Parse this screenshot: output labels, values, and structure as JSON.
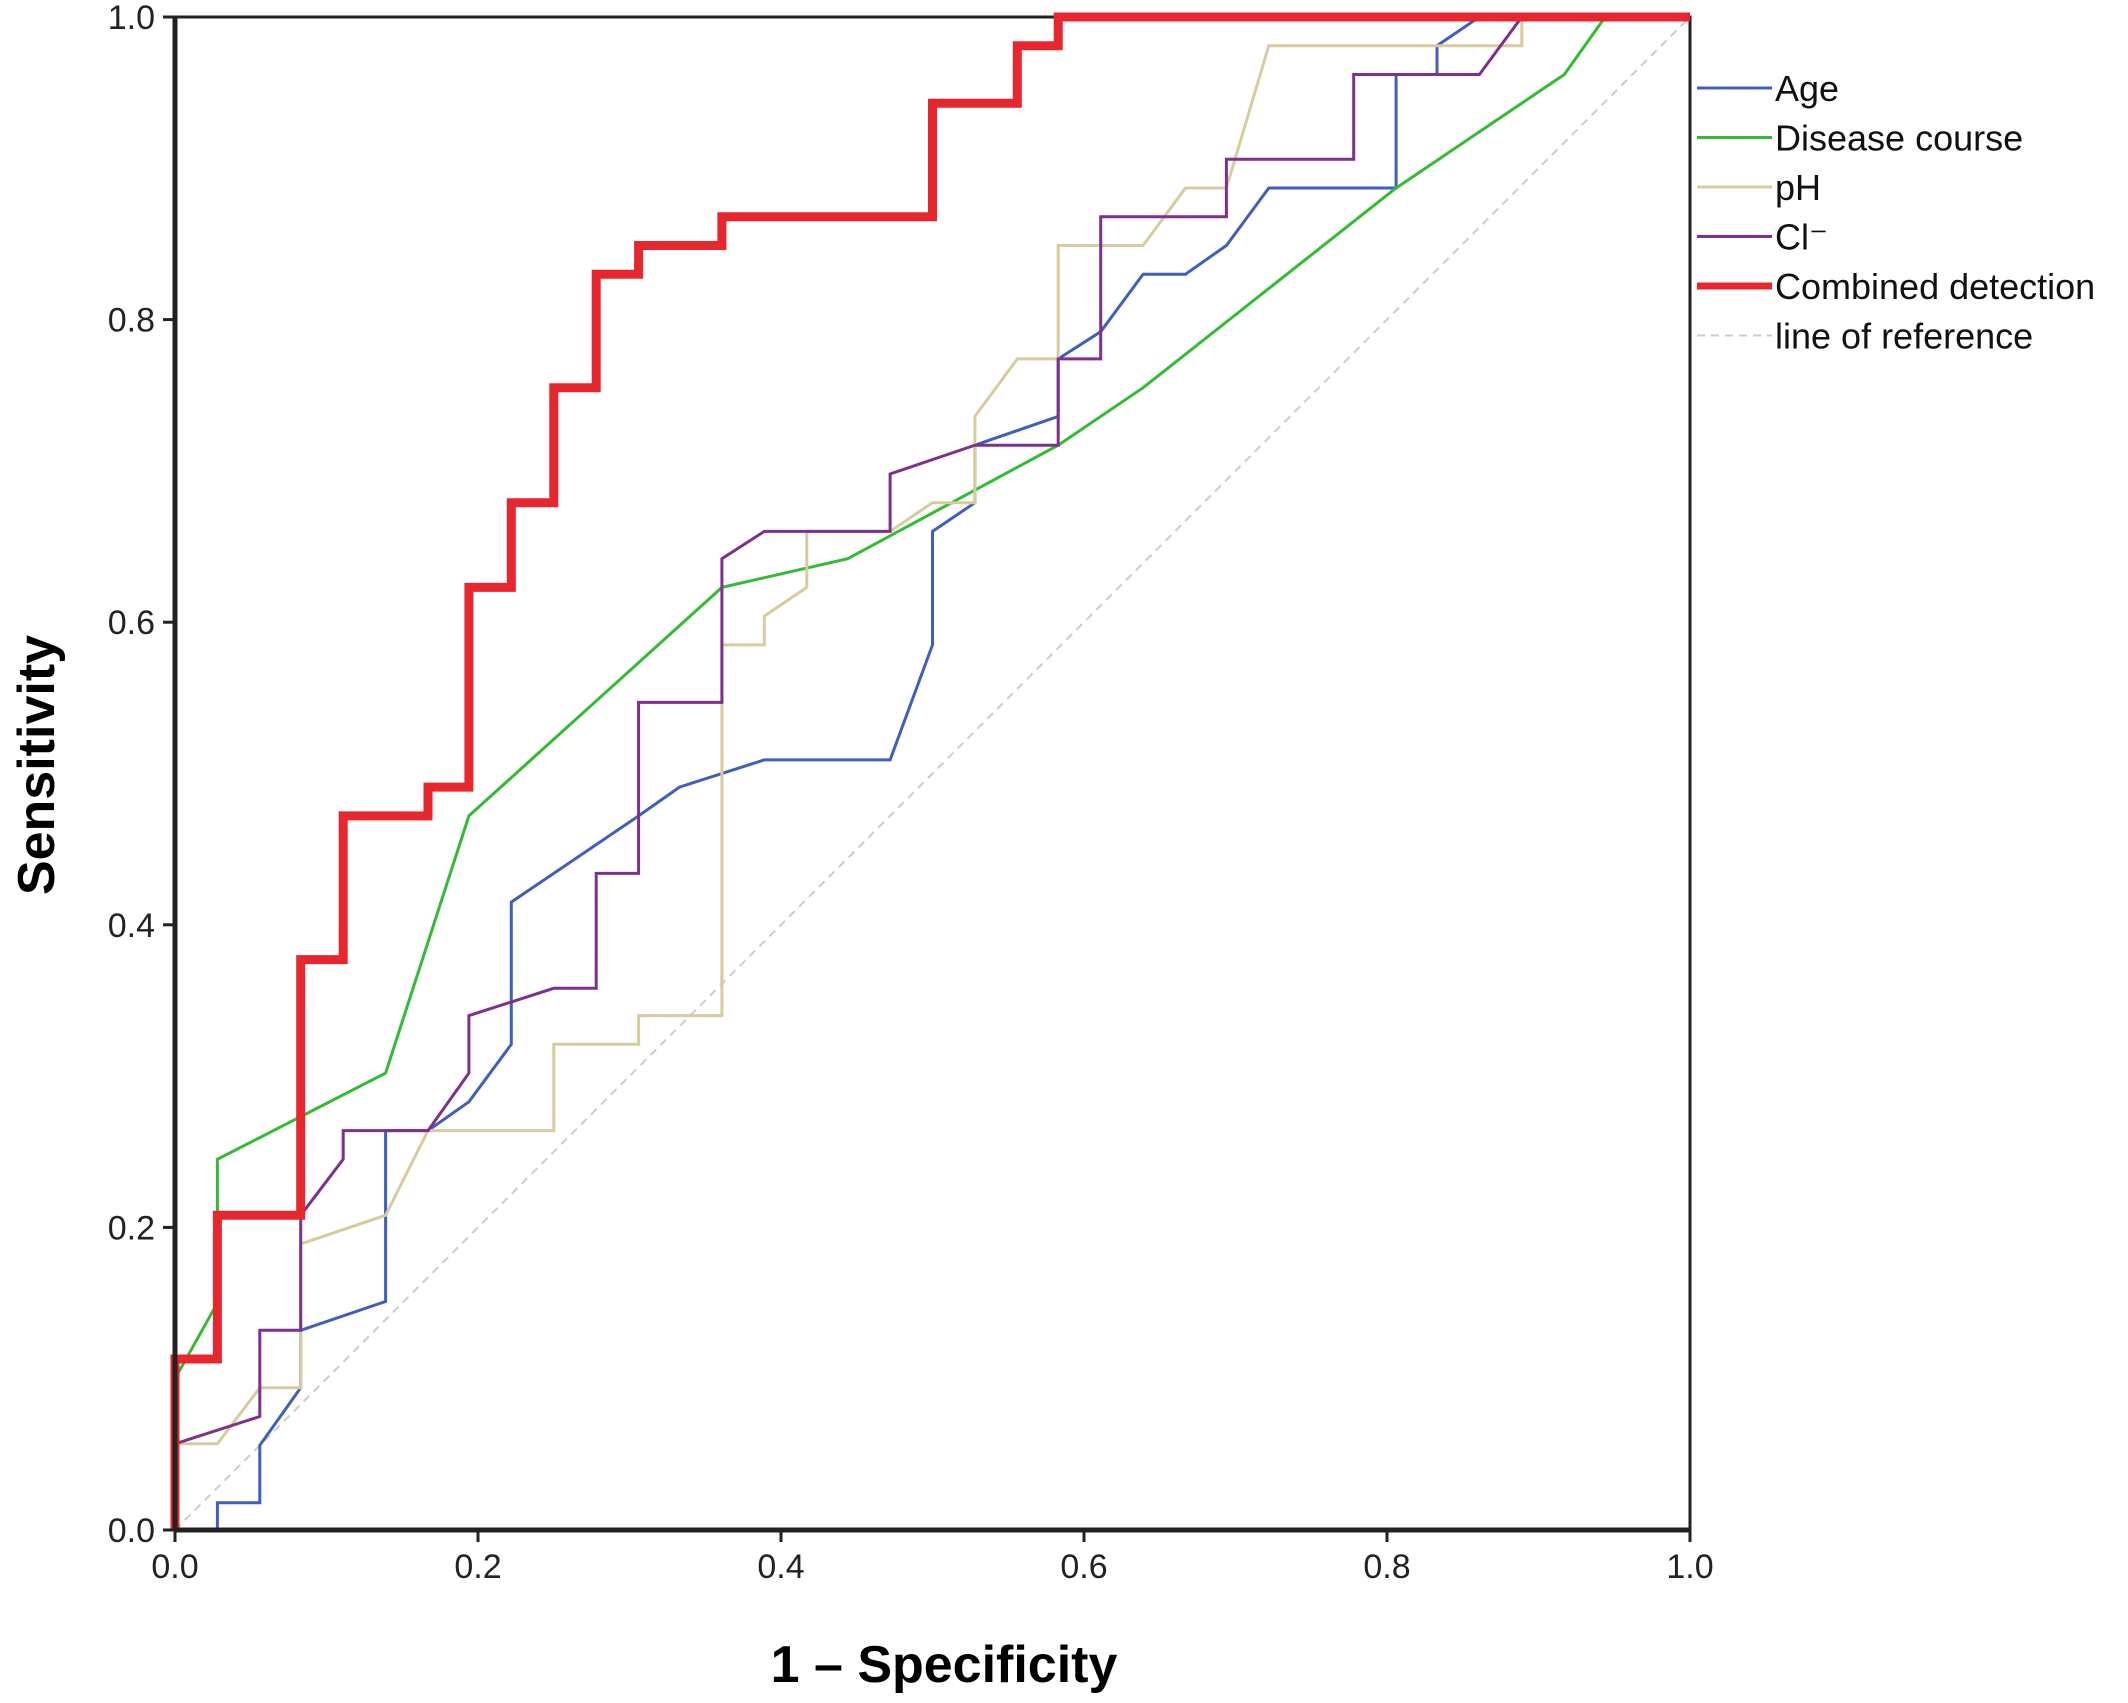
{
  "chart_data": {
    "type": "line",
    "xlabel": "1 – Specificity",
    "ylabel": "Sensitivity",
    "xlim": [
      0,
      1
    ],
    "ylim": [
      0,
      1
    ],
    "x_ticks": [
      "0.0",
      "0.2",
      "0.4",
      "0.6",
      "0.8",
      "1.0"
    ],
    "y_ticks": [
      "0.0",
      "0.2",
      "0.4",
      "0.6",
      "0.8",
      "1.0"
    ],
    "grid": false,
    "legend_position": "right",
    "series": [
      {
        "name": "Age",
        "color": "#3f5fbf",
        "points": [
          [
            0,
            0
          ],
          [
            0.028,
            0
          ],
          [
            0.028,
            0.018
          ],
          [
            0.056,
            0.018
          ],
          [
            0.056,
            0.056
          ],
          [
            0.083,
            0.094
          ],
          [
            0.083,
            0.132
          ],
          [
            0.139,
            0.151
          ],
          [
            0.139,
            0.264
          ],
          [
            0.167,
            0.264
          ],
          [
            0.194,
            0.283
          ],
          [
            0.222,
            0.321
          ],
          [
            0.222,
            0.415
          ],
          [
            0.278,
            0.453
          ],
          [
            0.306,
            0.472
          ],
          [
            0.333,
            0.491
          ],
          [
            0.389,
            0.509
          ],
          [
            0.472,
            0.509
          ],
          [
            0.5,
            0.585
          ],
          [
            0.5,
            0.66
          ],
          [
            0.528,
            0.679
          ],
          [
            0.528,
            0.717
          ],
          [
            0.583,
            0.736
          ],
          [
            0.583,
            0.774
          ],
          [
            0.611,
            0.792
          ],
          [
            0.639,
            0.83
          ],
          [
            0.667,
            0.83
          ],
          [
            0.694,
            0.849
          ],
          [
            0.722,
            0.887
          ],
          [
            0.806,
            0.887
          ],
          [
            0.806,
            0.962
          ],
          [
            0.833,
            0.962
          ],
          [
            0.833,
            0.981
          ],
          [
            0.861,
            1
          ],
          [
            1,
            1
          ]
        ]
      },
      {
        "name": "Disease course",
        "color": "#33bb33",
        "points": [
          [
            0,
            0.1
          ],
          [
            0.028,
            0.15
          ],
          [
            0.028,
            0.245
          ],
          [
            0.139,
            0.302
          ],
          [
            0.194,
            0.472
          ],
          [
            0.361,
            0.623
          ],
          [
            0.444,
            0.642
          ],
          [
            0.583,
            0.717
          ],
          [
            0.639,
            0.755
          ],
          [
            0.806,
            0.887
          ],
          [
            0.917,
            0.962
          ],
          [
            0.944,
            1
          ],
          [
            1,
            1
          ]
        ]
      },
      {
        "name": "pH",
        "color": "#d8cc9c",
        "points": [
          [
            0,
            0
          ],
          [
            0,
            0.057
          ],
          [
            0.028,
            0.057
          ],
          [
            0.056,
            0.094
          ],
          [
            0.083,
            0.094
          ],
          [
            0.083,
            0.189
          ],
          [
            0.139,
            0.208
          ],
          [
            0.167,
            0.264
          ],
          [
            0.25,
            0.264
          ],
          [
            0.25,
            0.321
          ],
          [
            0.306,
            0.321
          ],
          [
            0.306,
            0.34
          ],
          [
            0.361,
            0.34
          ],
          [
            0.361,
            0.585
          ],
          [
            0.389,
            0.585
          ],
          [
            0.389,
            0.604
          ],
          [
            0.417,
            0.623
          ],
          [
            0.417,
            0.66
          ],
          [
            0.472,
            0.66
          ],
          [
            0.5,
            0.679
          ],
          [
            0.528,
            0.679
          ],
          [
            0.528,
            0.736
          ],
          [
            0.556,
            0.774
          ],
          [
            0.583,
            0.774
          ],
          [
            0.583,
            0.849
          ],
          [
            0.639,
            0.849
          ],
          [
            0.667,
            0.887
          ],
          [
            0.694,
            0.887
          ],
          [
            0.722,
            0.981
          ],
          [
            0.889,
            0.981
          ],
          [
            0.889,
            1
          ],
          [
            1,
            1
          ]
        ]
      },
      {
        "name": "Cl⁻",
        "color": "#7f2f8f",
        "points": [
          [
            0,
            0
          ],
          [
            0,
            0.057
          ],
          [
            0.056,
            0.075
          ],
          [
            0.056,
            0.132
          ],
          [
            0.083,
            0.132
          ],
          [
            0.083,
            0.208
          ],
          [
            0.111,
            0.245
          ],
          [
            0.111,
            0.264
          ],
          [
            0.167,
            0.264
          ],
          [
            0.194,
            0.302
          ],
          [
            0.194,
            0.34
          ],
          [
            0.25,
            0.358
          ],
          [
            0.278,
            0.358
          ],
          [
            0.278,
            0.434
          ],
          [
            0.306,
            0.434
          ],
          [
            0.306,
            0.547
          ],
          [
            0.361,
            0.547
          ],
          [
            0.361,
            0.642
          ],
          [
            0.389,
            0.66
          ],
          [
            0.472,
            0.66
          ],
          [
            0.472,
            0.698
          ],
          [
            0.528,
            0.717
          ],
          [
            0.583,
            0.717
          ],
          [
            0.583,
            0.774
          ],
          [
            0.611,
            0.774
          ],
          [
            0.611,
            0.868
          ],
          [
            0.694,
            0.868
          ],
          [
            0.694,
            0.906
          ],
          [
            0.778,
            0.906
          ],
          [
            0.778,
            0.962
          ],
          [
            0.861,
            0.962
          ],
          [
            0.889,
            1
          ],
          [
            1,
            1
          ]
        ]
      },
      {
        "name": "Combined detection",
        "color": "#e8262e",
        "points": [
          [
            0,
            0
          ],
          [
            0,
            0.113
          ],
          [
            0.028,
            0.113
          ],
          [
            0.028,
            0.208
          ],
          [
            0.083,
            0.208
          ],
          [
            0.083,
            0.377
          ],
          [
            0.111,
            0.377
          ],
          [
            0.111,
            0.472
          ],
          [
            0.167,
            0.472
          ],
          [
            0.167,
            0.491
          ],
          [
            0.194,
            0.491
          ],
          [
            0.194,
            0.623
          ],
          [
            0.222,
            0.623
          ],
          [
            0.222,
            0.679
          ],
          [
            0.25,
            0.679
          ],
          [
            0.25,
            0.755
          ],
          [
            0.278,
            0.755
          ],
          [
            0.278,
            0.83
          ],
          [
            0.306,
            0.83
          ],
          [
            0.306,
            0.849
          ],
          [
            0.361,
            0.849
          ],
          [
            0.361,
            0.868
          ],
          [
            0.5,
            0.868
          ],
          [
            0.5,
            0.943
          ],
          [
            0.556,
            0.943
          ],
          [
            0.556,
            0.981
          ],
          [
            0.583,
            0.981
          ],
          [
            0.583,
            1
          ],
          [
            1,
            1
          ]
        ]
      },
      {
        "name": "line of reference",
        "color": "#cccccc",
        "points": [
          [
            0,
            0
          ],
          [
            1,
            1
          ]
        ]
      }
    ]
  }
}
